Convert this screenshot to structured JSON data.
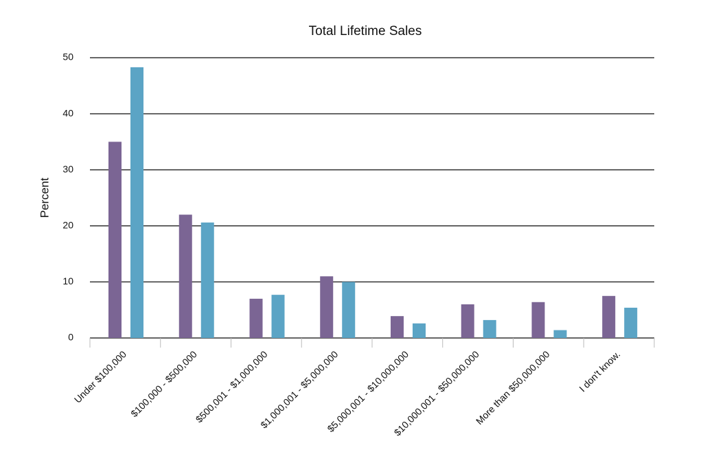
{
  "chart_data": {
    "type": "bar",
    "title": "Total Lifetime Sales",
    "y_label": "Percent",
    "categories": [
      "Under $100,000",
      "$100,000 - $500,000",
      "$500,001 - $1,000,000",
      "$1,000,001 - $5,000,000",
      "$5,000,001 - $10,000,000",
      "$10,000,001 - $50,000,000",
      "More than $50,000,000",
      "I don't know."
    ],
    "series": [
      {
        "color": "#7b6594",
        "values": [
          35,
          22,
          7,
          11,
          3.9,
          6,
          6.4,
          7.5
        ]
      },
      {
        "color": "#5ba4c5",
        "values": [
          48.3,
          20.6,
          7.7,
          10,
          2.6,
          3.2,
          1.4,
          5.4
        ]
      }
    ],
    "ylim": [
      0,
      50
    ],
    "yticks": [
      0,
      10,
      20,
      30,
      40,
      50
    ],
    "grid": true
  }
}
